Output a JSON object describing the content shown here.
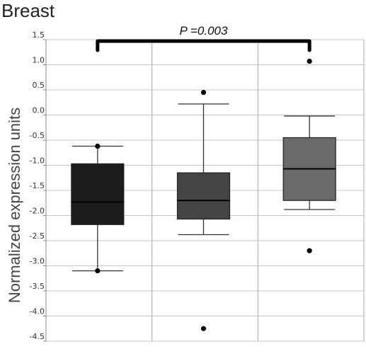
{
  "panel_title": "Breast",
  "chart_data": {
    "type": "box",
    "ylabel": "Normalized expression units",
    "xlabel": "",
    "ylim": [
      -4.5,
      1.5
    ],
    "yticks": [
      "1.5",
      "1.0",
      "0.5",
      "0.0",
      "-0.5",
      "-1.0",
      "-1.5",
      "-2.0",
      "-2.5",
      "-3.0",
      "-3.5",
      "-4.0",
      "-4.5"
    ],
    "grid": true,
    "boxes": [
      {
        "whisker_low": -3.1,
        "q1": -2.18,
        "median": -1.73,
        "q3": -0.97,
        "whisker_high": -0.62,
        "outliers": [
          -0.62,
          -3.1
        ],
        "color": "#1c1c1c"
      },
      {
        "whisker_low": -2.38,
        "q1": -2.07,
        "median": -1.7,
        "q3": -1.15,
        "whisker_high": 0.22,
        "outliers": [
          0.45,
          -4.25
        ],
        "color": "#444444"
      },
      {
        "whisker_low": -1.88,
        "q1": -1.7,
        "median": -1.07,
        "q3": -0.45,
        "whisker_high": -0.02,
        "outliers": [
          1.07,
          -2.7
        ],
        "color": "#6a6a6a"
      }
    ],
    "annotation": {
      "text": "P =0.003",
      "from_box": 0,
      "to_box": 2
    }
  }
}
